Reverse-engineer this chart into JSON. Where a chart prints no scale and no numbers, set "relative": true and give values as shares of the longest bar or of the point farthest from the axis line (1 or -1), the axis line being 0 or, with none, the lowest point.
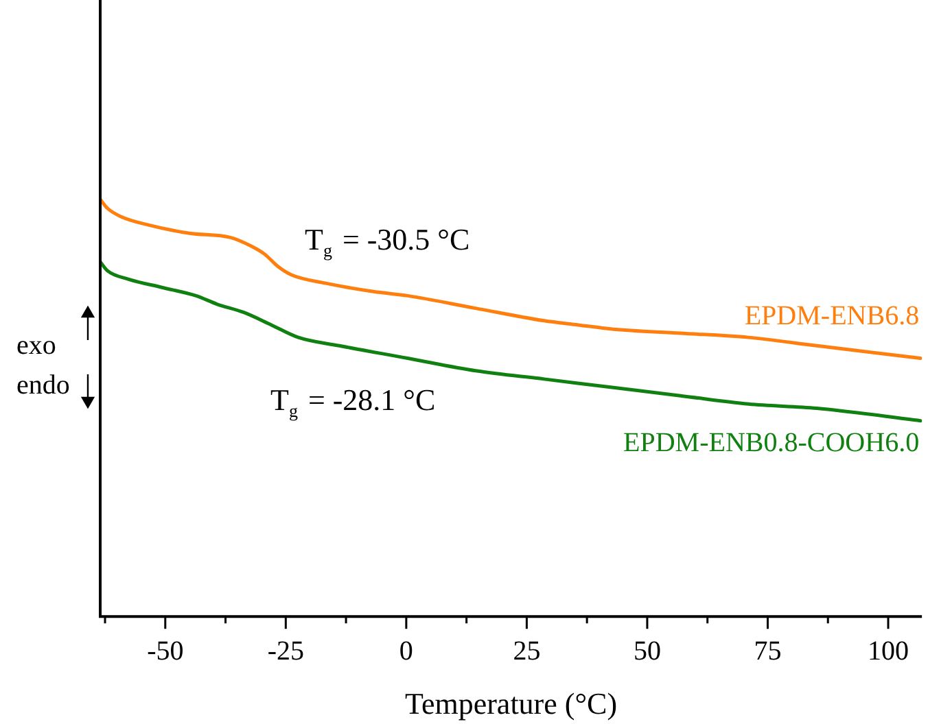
{
  "chart_data": {
    "type": "line",
    "relative": true,
    "xlabel": "Temperature (°C)",
    "xlim": [
      -63.5,
      107
    ],
    "xticks": [
      {
        "value": -62.5,
        "label": null
      },
      -50,
      {
        "value": -37.5,
        "label": null
      },
      -25,
      {
        "value": -12.5,
        "label": null
      },
      0,
      {
        "value": 12.5,
        "label": null
      },
      25,
      {
        "value": 37.5,
        "label": null
      },
      50,
      {
        "value": 62.5,
        "label": null
      },
      75,
      {
        "value": 87.5,
        "label": null
      },
      100
    ],
    "grid": false,
    "legend": false,
    "marker": "none",
    "line_style": "solid",
    "series": [
      {
        "name": "EPDM-ENB6.8",
        "color": "#ff7f0e",
        "x": [
          -63.4,
          -62,
          -59.2,
          -53.5,
          -45,
          -36.5,
          -32.3,
          -29.4,
          -26.6,
          -23.8,
          -16.7,
          -6.8,
          0.3,
          14.4,
          28.6,
          35.7,
          42.7,
          56.9,
          71,
          85.2,
          106.7
        ],
        "values": [
          1,
          0.98,
          0.96,
          0.94,
          0.92,
          0.91,
          0.89,
          0.87,
          0.84,
          0.82,
          0.8,
          0.78,
          0.77,
          0.74,
          0.71,
          0.7,
          0.69,
          0.68,
          0.67,
          0.65,
          0.62
        ]
      },
      {
        "name": "EPDM-ENB0.8-COOH6.0",
        "color": "#108010",
        "x": [
          -63.4,
          -62,
          -57.7,
          -50.7,
          -43.6,
          -39.3,
          -33.7,
          -28,
          -22.4,
          -13.9,
          0.3,
          14.4,
          28.6,
          42.7,
          56.9,
          71,
          85.2,
          106.7
        ],
        "values": [
          0.85,
          0.83,
          0.81,
          0.79,
          0.77,
          0.75,
          0.73,
          0.7,
          0.67,
          0.65,
          0.62,
          0.59,
          0.57,
          0.55,
          0.53,
          0.51,
          0.5,
          0.47
        ]
      }
    ],
    "annotations": [
      "exo",
      "endo",
      "T$_{g}$ = -30.5 °C",
      "T$_{g}$ = -28.1 °C"
    ]
  }
}
